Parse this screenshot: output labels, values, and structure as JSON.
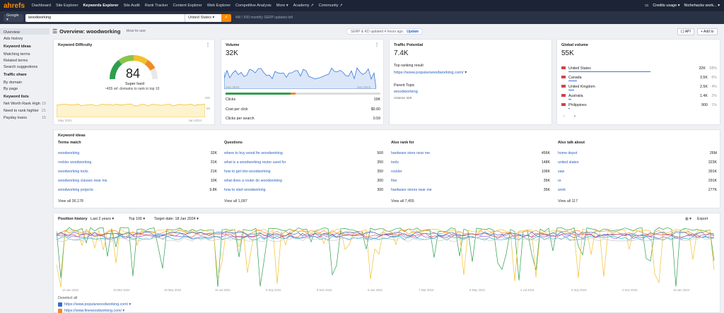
{
  "topnav": {
    "logo": "ahrefs",
    "items": [
      "Dashboard",
      "Site Explorer",
      "Keywords Explorer",
      "Site Audit",
      "Rank Tracker",
      "Content Explorer",
      "Web Explorer",
      "Competitive Analysis",
      "More ▾",
      "Academy ↗",
      "Community ↗"
    ],
    "credits": "Credits usage ▾",
    "account": "Nichehacks work... ▾"
  },
  "search": {
    "engine": "Google ▾",
    "keyword": "woodworking",
    "country": "United States ▾",
    "credits_left": "4W / 500 monthly SERP updates left"
  },
  "sidebar": {
    "top": [
      "Overview",
      "Ads history"
    ],
    "ideas_h": "Keyword ideas",
    "ideas": [
      "Matching terms",
      "Related terms",
      "Search suggestions"
    ],
    "traffic_h": "Traffic share",
    "traffic": [
      "By domain",
      "By page"
    ],
    "lists_h": "Keyword lists",
    "lists": [
      {
        "name": "Net Worth Rank High",
        "count": "10"
      },
      {
        "name": "Need to rank highter",
        "count": "21"
      },
      {
        "name": "Payday loans",
        "count": "15"
      }
    ]
  },
  "header": {
    "title": "Overview: woodworking",
    "howto": "How to use",
    "serp": "SERP & KD updated 4 hours ago.",
    "update": "Update",
    "api": "{ } API",
    "add": "+ Add to"
  },
  "kd": {
    "title": "Keyword Difficulty",
    "value": "84",
    "label": "Super hard",
    "sub": "~455 ref. domains to rank in top 10",
    "y1": "100",
    "y2": "50",
    "d1": "May 2021",
    "d2": "Jan 2024"
  },
  "vol": {
    "title": "Volume",
    "value": "32K",
    "d1": "Sep 2015",
    "d2": "Sep 2023",
    "rows": [
      {
        "k": "Clicks",
        "v": "19K"
      },
      {
        "k": "Cost per click",
        "v": "$0.60"
      },
      {
        "k": "Clicks per search",
        "v": "0.59"
      }
    ]
  },
  "tp": {
    "title": "Traffic Potential",
    "value": "7.4K",
    "top_label": "Top ranking result",
    "top_url": "https://www.popularwoodworking.com/ ▾",
    "parent_label": "Parent Topic",
    "parent": "woodworking",
    "parent_vol": "Volume 32K"
  },
  "gv": {
    "title": "Global volume",
    "value": "55K",
    "countries": [
      {
        "name": "United States",
        "v": "32K",
        "p": "58%",
        "bar": 0.58
      },
      {
        "name": "Canada",
        "v": "3.5K",
        "p": "6%",
        "bar": 0.06
      },
      {
        "name": "United Kingdom",
        "v": "2.5K",
        "p": "4%",
        "bar": 0.04
      },
      {
        "name": "Australia",
        "v": "1.4K",
        "p": "2%",
        "bar": 0.02
      },
      {
        "name": "Philippines",
        "v": "900",
        "p": "1%",
        "bar": 0.01
      }
    ]
  },
  "ideas": {
    "title": "Keyword ideas",
    "cols": [
      {
        "h": "Terms match",
        "rows": [
          [
            "woodworking",
            "32K"
          ],
          [
            "rockler woodworking",
            "31K"
          ],
          [
            "woodworking tools",
            "21K"
          ],
          [
            "woodworking classes near me",
            "10K"
          ],
          [
            "woodworking projects",
            "9.8K"
          ]
        ],
        "all": "View all 36,178"
      },
      {
        "h": "Questions",
        "rows": [
          [
            "where to buy wood for woodworking",
            "500"
          ],
          [
            "what is a woodworking router used for",
            "350"
          ],
          [
            "how to get into woodworking",
            "350"
          ],
          [
            "what does a router do woodworking",
            "300"
          ],
          [
            "how to start woodworking",
            "300"
          ]
        ],
        "all": "View all 1,087"
      },
      {
        "h": "Also rank for",
        "rows": [
          [
            "hardware store near me",
            "456K"
          ],
          [
            "tools",
            "148K"
          ],
          [
            "rockler",
            "106K"
          ],
          [
            "fine",
            "35K"
          ],
          [
            "hardware stores near me",
            "35K"
          ]
        ],
        "all": "View all 7,455"
      },
      {
        "h": "Also talk about",
        "rows": [
          [
            "home depot",
            "26M"
          ],
          [
            "united states",
            "323K"
          ],
          [
            "saw",
            "391K"
          ],
          [
            "re",
            "291K"
          ],
          [
            "work",
            "277K"
          ]
        ],
        "all": "View all 117"
      }
    ]
  },
  "ph": {
    "title": "Position history",
    "period": "Last 2 years ▾",
    "top": "Top 100 ▾",
    "target": "Target date: 18 Jan 2024 ▾",
    "export": "Export",
    "dates": [
      "19 Jan 2022",
      "19 Mar 2022",
      "18 May 2022",
      "16 Jul 2022",
      "9 Sep 2022",
      "8 Nov 2022",
      "6 Jan 2023",
      "7 Mar 2023",
      "5 May 2023",
      "4 Jul 2023",
      "5 Sep 2023",
      "2 Nov 2023",
      "18 Jan 2024"
    ],
    "deselect": "Deselect all",
    "legend": [
      {
        "url": "https://www.popularwoodworking.com/ ▾",
        "color": "#2f6fd6"
      },
      {
        "url": "https://www.finewoodworking.com/ ▾",
        "color": "#f08a24"
      }
    ]
  },
  "colors": {
    "accent": "#ff8a00",
    "link": "#2a5fbf",
    "kd": "#2e9e4f"
  }
}
